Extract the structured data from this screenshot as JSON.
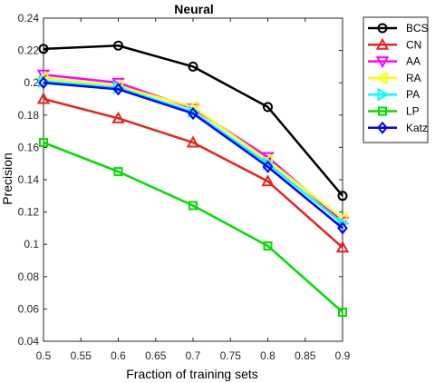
{
  "chart_data": {
    "type": "line",
    "title": "Neural",
    "xlabel": "Fraction of training sets",
    "ylabel": "Precision",
    "xlim": [
      0.5,
      0.9
    ],
    "ylim": [
      0.04,
      0.24
    ],
    "x": [
      0.5,
      0.6,
      0.7,
      0.8,
      0.9
    ],
    "x_ticks": [
      "0.5",
      "0.55",
      "0.6",
      "0.65",
      "0.7",
      "0.75",
      "0.8",
      "0.85",
      "0.9"
    ],
    "y_ticks": [
      "0.04",
      "0.06",
      "0.08",
      "0.1",
      "0.12",
      "0.14",
      "0.16",
      "0.18",
      "0.2",
      "0.22",
      "0.24"
    ],
    "grid": false,
    "legend_position": "top-right outside",
    "series": [
      {
        "name": "BCS",
        "color": "#000000",
        "marker": "circle",
        "values": [
          0.221,
          0.223,
          0.21,
          0.185,
          0.13
        ]
      },
      {
        "name": "CN",
        "color": "#e8231f",
        "marker": "triangle-up",
        "values": [
          0.19,
          0.178,
          0.163,
          0.139,
          0.098
        ]
      },
      {
        "name": "AA",
        "color": "#ff00ff",
        "marker": "triangle-down",
        "values": [
          0.205,
          0.2,
          0.184,
          0.154,
          0.114
        ]
      },
      {
        "name": "RA",
        "color": "#ffff00",
        "marker": "triangle-left",
        "values": [
          0.203,
          0.198,
          0.185,
          0.152,
          0.116
        ]
      },
      {
        "name": "PA",
        "color": "#00ffff",
        "marker": "triangle-right",
        "values": [
          0.201,
          0.197,
          0.182,
          0.15,
          0.113
        ]
      },
      {
        "name": "LP",
        "color": "#00dd00",
        "marker": "square",
        "values": [
          0.163,
          0.145,
          0.124,
          0.099,
          0.058
        ]
      },
      {
        "name": "Katz",
        "color": "#0000ff",
        "marker": "diamond",
        "values": [
          0.2,
          0.196,
          0.181,
          0.148,
          0.11
        ]
      }
    ]
  }
}
